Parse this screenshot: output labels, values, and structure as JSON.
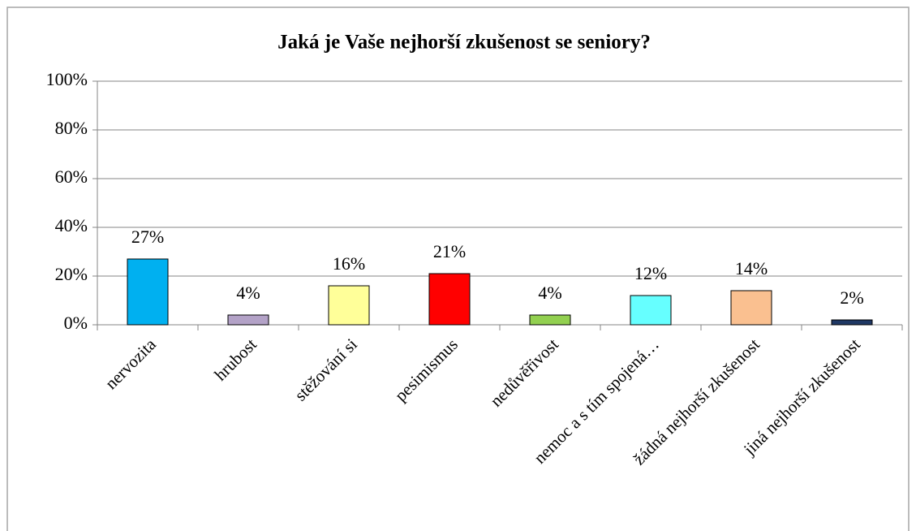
{
  "chart_data": {
    "type": "bar",
    "title": "Jaká je Vaše nejhorší zkušenost se seniory?",
    "categories": [
      "nervozita",
      "hrubost",
      "stěžování si",
      "pesimismus",
      "nedůvěřivost",
      "nemoc a s tím spojená…",
      "žádná nejhorší zkušenost",
      "jiná nejhorší zkušenost"
    ],
    "values": [
      27,
      4,
      16,
      21,
      4,
      12,
      14,
      2
    ],
    "value_labels": [
      "27%",
      "4%",
      "16%",
      "21%",
      "4%",
      "12%",
      "14%",
      "2%"
    ],
    "colors": [
      "#00b0f0",
      "#b3a2c7",
      "#ffff99",
      "#ff0000",
      "#92d050",
      "#66ffff",
      "#fac090",
      "#1f3864"
    ],
    "ylim": [
      0,
      100
    ],
    "yticks": [
      {
        "value": 0,
        "label": "0%"
      },
      {
        "value": 20,
        "label": "20%"
      },
      {
        "value": 40,
        "label": "40%"
      },
      {
        "value": 60,
        "label": "60%"
      },
      {
        "value": 80,
        "label": "80%"
      },
      {
        "value": 100,
        "label": "100%"
      }
    ],
    "grid": true
  }
}
